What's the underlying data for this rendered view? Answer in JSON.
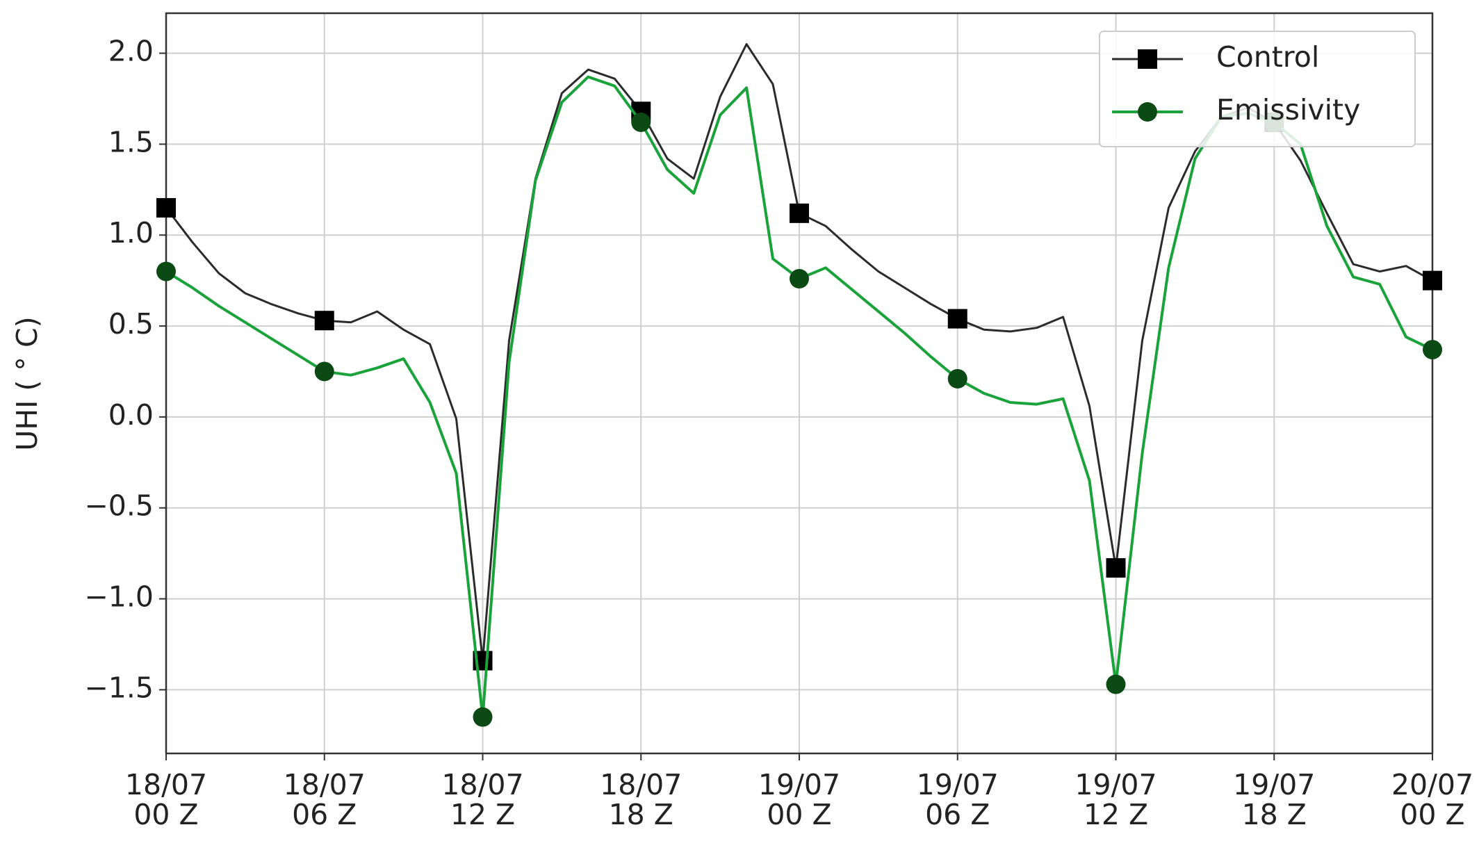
{
  "chart_data": {
    "type": "line",
    "ylabel": "UHI ( ° C)",
    "categories": [
      "18/07\n00 Z",
      null,
      null,
      null,
      null,
      null,
      "18/07\n06 Z",
      null,
      null,
      null,
      null,
      null,
      "18/07\n12 Z",
      null,
      null,
      null,
      null,
      null,
      "18/07\n18 Z",
      null,
      null,
      null,
      null,
      null,
      "19/07\n00 Z",
      null,
      null,
      null,
      null,
      null,
      "19/07\n06 Z",
      null,
      null,
      null,
      null,
      null,
      "19/07\n12 Z",
      null,
      null,
      null,
      null,
      null,
      "19/07\n18 Z",
      null,
      null,
      null,
      null,
      null,
      "20/07\n00 Z"
    ],
    "series": [
      {
        "name": "Control",
        "color": "#2b2b2b",
        "marker": "square",
        "marker_color": "#000000",
        "values": [
          1.15,
          0.96,
          0.79,
          0.68,
          0.62,
          0.57,
          0.53,
          0.52,
          0.58,
          0.48,
          0.4,
          -0.01,
          -1.34,
          0.42,
          1.31,
          1.78,
          1.91,
          1.86,
          1.68,
          1.42,
          1.31,
          1.76,
          2.05,
          1.83,
          1.12,
          1.05,
          0.92,
          0.8,
          0.71,
          0.62,
          0.54,
          0.48,
          0.47,
          0.49,
          0.55,
          0.06,
          -0.83,
          0.42,
          1.15,
          1.46,
          1.65,
          1.7,
          1.62,
          1.41,
          1.12,
          0.84,
          0.8,
          0.83,
          0.75
        ]
      },
      {
        "name": "Emissivity",
        "color": "#1aa33a",
        "marker": "circle",
        "marker_color": "#0b4a14",
        "values": [
          0.8,
          0.71,
          0.61,
          0.52,
          0.43,
          0.34,
          0.25,
          0.23,
          0.27,
          0.32,
          0.08,
          -0.31,
          -1.65,
          0.3,
          1.3,
          1.73,
          1.87,
          1.82,
          1.62,
          1.36,
          1.23,
          1.66,
          1.81,
          0.87,
          0.76,
          0.82,
          0.7,
          0.58,
          0.46,
          0.33,
          0.21,
          0.13,
          0.08,
          0.07,
          0.1,
          -0.35,
          -1.47,
          -0.2,
          0.82,
          1.42,
          1.65,
          1.67,
          1.62,
          1.5,
          1.05,
          0.77,
          0.73,
          0.44,
          0.37
        ]
      }
    ],
    "marker_every": 6,
    "ylim": [
      -1.85,
      2.22
    ],
    "yticks": [
      {
        "value": -1.5,
        "label": "−1.5"
      },
      {
        "value": -1.0,
        "label": "−1.0"
      },
      {
        "value": -0.5,
        "label": "−0.5"
      },
      {
        "value": 0.0,
        "label": "0.0"
      },
      0.5,
      {
        "value": 1.0,
        "label": "1.0"
      },
      1.5,
      {
        "value": 2.0,
        "label": "2.0"
      }
    ],
    "grid": true,
    "legend": "upper right"
  }
}
